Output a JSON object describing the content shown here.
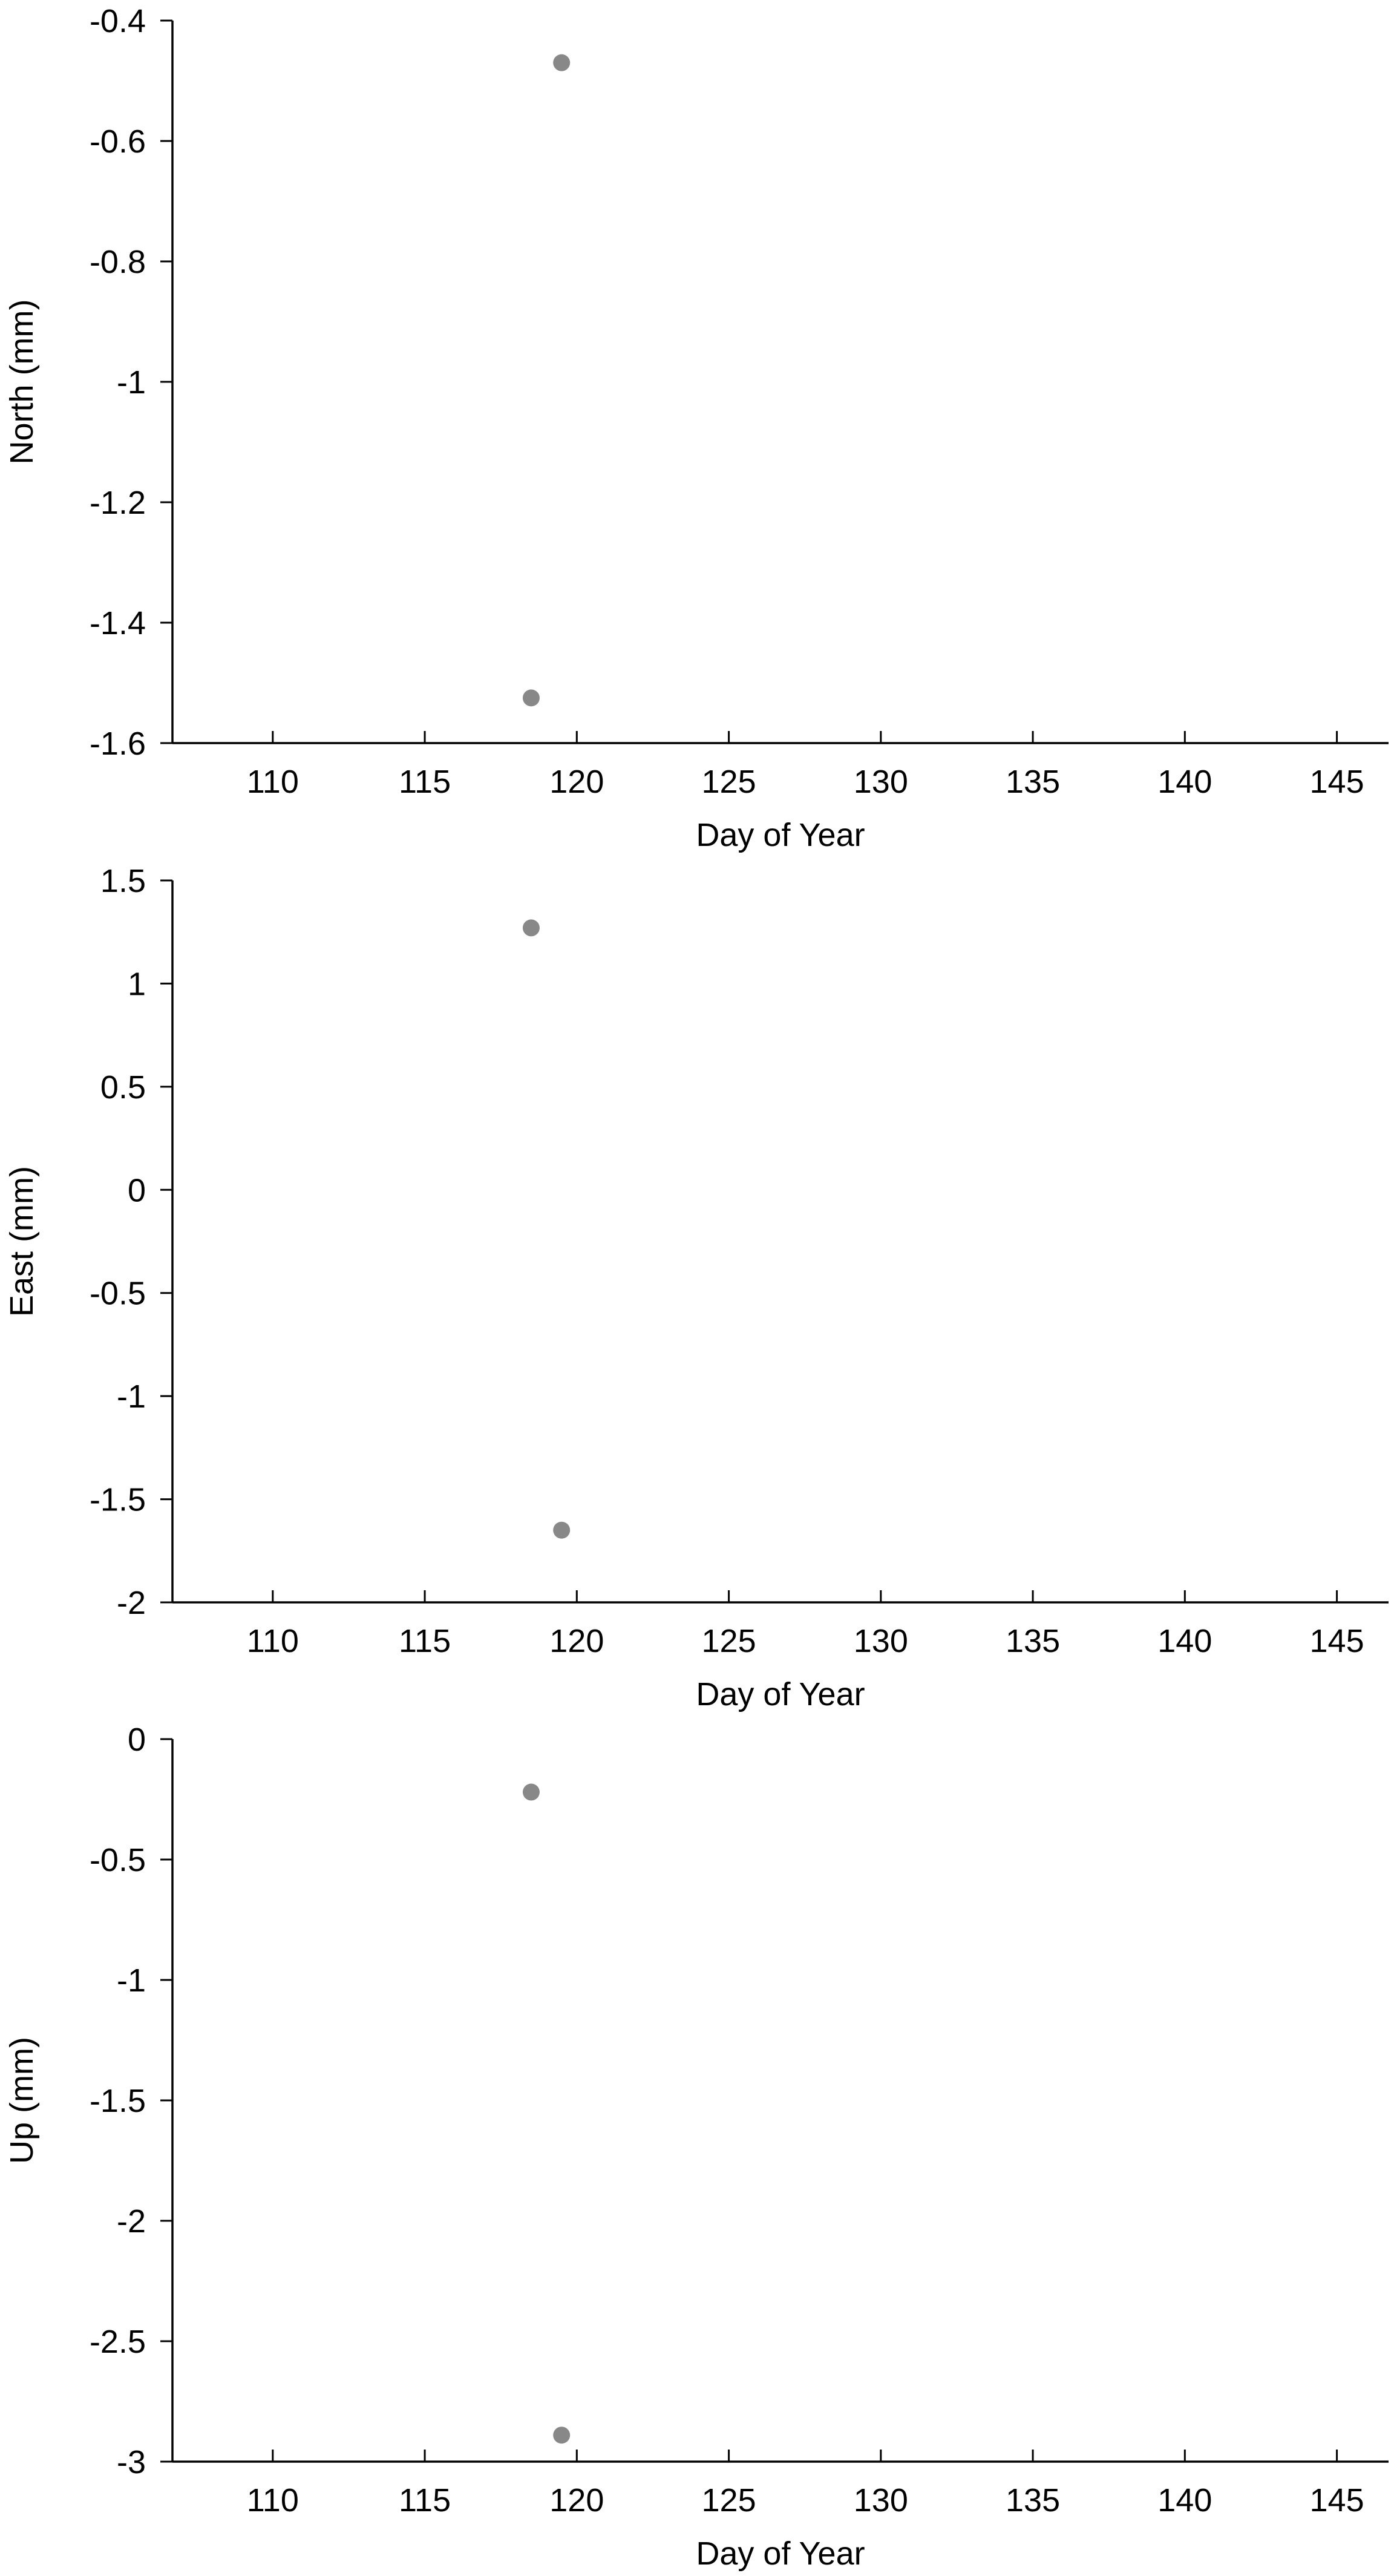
{
  "chart_data": [
    {
      "type": "scatter",
      "xlabel": "Day of Year",
      "ylabel": "North (mm)",
      "xlim": [
        106.7,
        146.7
      ],
      "ylim": [
        -1.6,
        -0.4
      ],
      "xticks": [
        110,
        115,
        120,
        125,
        130,
        135,
        140,
        145
      ],
      "yticks": [
        -0.4,
        -0.6,
        -0.8,
        -1,
        -1.2,
        -1.4,
        -1.6
      ],
      "x": [
        118.5,
        119.5
      ],
      "y": [
        -1.525,
        -0.47
      ],
      "marker_color": "#888888",
      "grid": false
    },
    {
      "type": "scatter",
      "xlabel": "Day of Year",
      "ylabel": "East (mm)",
      "xlim": [
        106.7,
        146.7
      ],
      "ylim": [
        -2,
        1.5
      ],
      "xticks": [
        110,
        115,
        120,
        125,
        130,
        135,
        140,
        145
      ],
      "yticks": [
        1.5,
        1,
        0.5,
        0,
        -0.5,
        -1,
        -1.5,
        -2
      ],
      "x": [
        118.5,
        119.5
      ],
      "y": [
        1.27,
        -1.65
      ],
      "marker_color": "#888888",
      "grid": false
    },
    {
      "type": "scatter",
      "xlabel": "Day of Year",
      "ylabel": "Up (mm)",
      "xlim": [
        106.7,
        146.7
      ],
      "ylim": [
        -3,
        0
      ],
      "xticks": [
        110,
        115,
        120,
        125,
        130,
        135,
        140,
        145
      ],
      "yticks": [
        0,
        -0.5,
        -1,
        -1.5,
        -2,
        -2.5,
        -3
      ],
      "x": [
        118.5,
        119.5
      ],
      "y": [
        -0.22,
        -2.89
      ],
      "marker_color": "#888888",
      "grid": false
    }
  ]
}
